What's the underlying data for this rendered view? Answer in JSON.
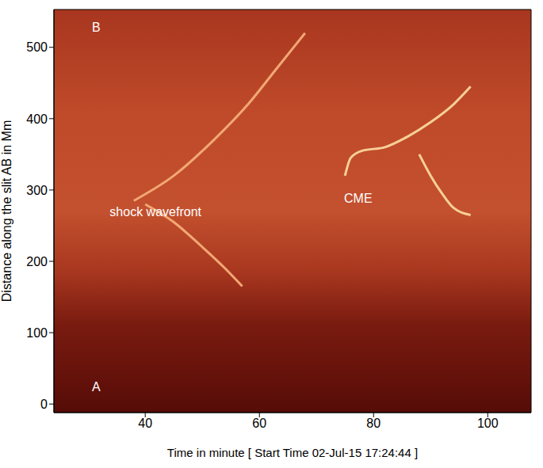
{
  "chart_data": {
    "type": "line",
    "xlabel": "Time in minute [ Start Time 02-Jul-15 17:24:44 ]",
    "ylabel": "Distance along the slit AB in Mm",
    "xlim": [
      24,
      107.6
    ],
    "ylim": [
      -12,
      553
    ],
    "xticks": [
      40,
      60,
      80,
      100
    ],
    "yticks": [
      0,
      100,
      200,
      300,
      400,
      500
    ],
    "grid": false,
    "series": [
      {
        "name": "shock wavefront",
        "color": "#f2a874",
        "x": [
          38,
          45,
          52,
          58,
          63,
          68,
          null,
          40,
          45,
          50,
          54,
          57
        ],
        "values": [
          285,
          320,
          370,
          420,
          470,
          520,
          null,
          280,
          255,
          220,
          190,
          165
        ]
      },
      {
        "name": "CME",
        "color": "#f7cf98",
        "x": [
          75,
          76,
          78,
          82,
          86,
          90,
          94,
          97,
          null,
          88,
          90,
          92,
          94,
          97
        ],
        "values": [
          320,
          345,
          355,
          360,
          375,
          395,
          420,
          445,
          null,
          350,
          320,
          295,
          275,
          265
        ]
      }
    ],
    "annotations": [
      {
        "text": "shock wavefront",
        "x": 41.8,
        "y": 270
      },
      {
        "text": "CME",
        "x": 77.3,
        "y": 288
      },
      {
        "text": "B",
        "x": 31.4,
        "y": 528
      },
      {
        "text": "A",
        "x": 31.4,
        "y": 24
      }
    ]
  }
}
